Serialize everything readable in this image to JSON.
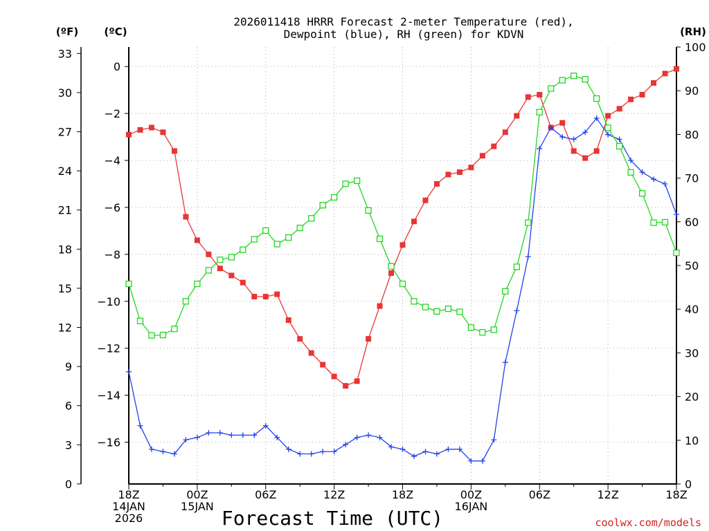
{
  "chart_data": {
    "type": "line",
    "title": "2026011418 HRRR Forecast 2-meter Temperature (red),",
    "subtitle": "Dewpoint (blue), RH (green) for KDVN",
    "xlabel": "Forecast Time (UTC)",
    "credit": "coolwx.com/models",
    "left_axis_f": {
      "unit": "(ºF)",
      "ticks": [
        0,
        3,
        6,
        9,
        12,
        15,
        18,
        21,
        24,
        27,
        30,
        33
      ]
    },
    "left_axis_c": {
      "unit": "(ºC)",
      "range": [
        -17.78,
        0.83
      ],
      "ticks": [
        0,
        -2,
        -4,
        -6,
        -8,
        -10,
        -12,
        -14,
        -16
      ]
    },
    "right_axis": {
      "unit": "(RH)",
      "range": [
        0,
        100
      ],
      "ticks": [
        0,
        10,
        20,
        30,
        40,
        50,
        60,
        70,
        80,
        90,
        100
      ]
    },
    "x": {
      "range_hours": [
        0,
        48
      ],
      "ticks": [
        {
          "hour": 0,
          "lines": [
            "18Z",
            "14JAN",
            "2026"
          ]
        },
        {
          "hour": 6,
          "lines": [
            "00Z",
            "15JAN"
          ]
        },
        {
          "hour": 12,
          "lines": [
            "06Z"
          ]
        },
        {
          "hour": 18,
          "lines": [
            "12Z"
          ]
        },
        {
          "hour": 24,
          "lines": [
            "18Z"
          ]
        },
        {
          "hour": 30,
          "lines": [
            "00Z",
            "16JAN"
          ]
        },
        {
          "hour": 36,
          "lines": [
            "06Z"
          ]
        },
        {
          "hour": 42,
          "lines": [
            "12Z"
          ]
        },
        {
          "hour": 48,
          "lines": [
            "18Z"
          ]
        }
      ]
    },
    "series": [
      {
        "name": "2-meter Temperature",
        "axis": "celsius",
        "color": "#e83535",
        "marker": "filled-square",
        "values": [
          -2.9,
          -2.7,
          -2.6,
          -2.8,
          -3.6,
          -6.4,
          -7.4,
          -8.0,
          -8.6,
          -8.9,
          -9.2,
          -9.8,
          -9.8,
          -9.7,
          -10.8,
          -11.6,
          -12.2,
          -12.7,
          -13.2,
          -13.6,
          -13.4,
          -11.6,
          -10.2,
          -8.8,
          -7.6,
          -6.6,
          -5.7,
          -5.0,
          -4.6,
          -4.5,
          -4.3,
          -3.8,
          -3.4,
          -2.8,
          -2.1,
          -1.3,
          -1.2,
          -2.6,
          -2.4,
          -3.6,
          -3.9,
          -3.6,
          -2.1,
          -1.8,
          -1.4,
          -1.2,
          -0.7,
          -0.3,
          -0.1
        ]
      },
      {
        "name": "Dewpoint",
        "axis": "celsius",
        "color": "#2040e8",
        "marker": "plus",
        "values": [
          -13.0,
          -15.3,
          -16.3,
          -16.4,
          -16.5,
          -15.9,
          -15.8,
          -15.6,
          -15.6,
          -15.7,
          -15.7,
          -15.7,
          -15.3,
          -15.8,
          -16.3,
          -16.5,
          -16.5,
          -16.4,
          -16.4,
          -16.1,
          -15.8,
          -15.7,
          -15.8,
          -16.2,
          -16.3,
          -16.6,
          -16.4,
          -16.5,
          -16.3,
          -16.3,
          -16.8,
          -16.8,
          -15.9,
          -12.6,
          -10.4,
          -8.1,
          -3.5,
          -2.6,
          -3.0,
          -3.1,
          -2.8,
          -2.2,
          -2.9,
          -3.1,
          -4.0,
          -4.5,
          -4.8,
          -5.0,
          -6.3
        ]
      },
      {
        "name": "RH",
        "axis": "rh",
        "color": "#22d622",
        "marker": "open-square",
        "values": [
          45.8,
          37.3,
          34.0,
          34.1,
          35.5,
          41.8,
          45.8,
          48.9,
          51.3,
          51.9,
          53.6,
          56.0,
          58.0,
          54.9,
          56.4,
          58.6,
          60.8,
          63.8,
          65.6,
          68.7,
          69.4,
          62.6,
          56.1,
          49.8,
          45.8,
          41.8,
          40.5,
          39.5,
          40.1,
          39.4,
          35.8,
          34.7,
          35.3,
          44.1,
          49.7,
          59.8,
          85.1,
          90.5,
          92.4,
          93.4,
          92.6,
          88.2,
          81.5,
          77.3,
          71.3,
          66.5,
          59.8,
          59.9,
          52.9
        ]
      }
    ]
  }
}
